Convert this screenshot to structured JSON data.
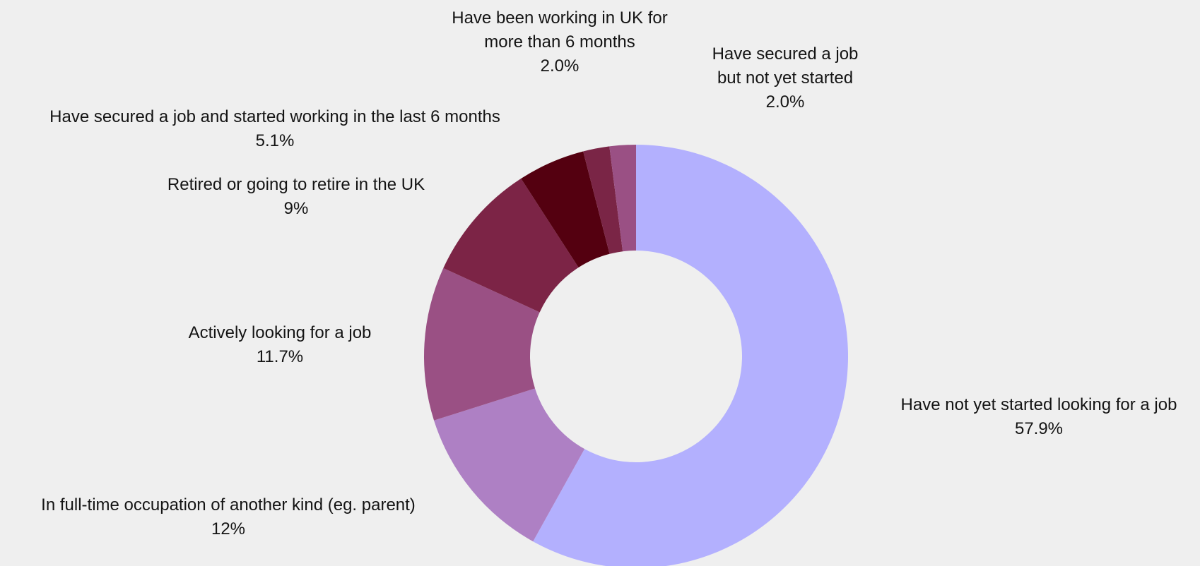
{
  "chart_data": {
    "type": "pie",
    "variant": "donut",
    "title": "",
    "legend": "none",
    "slices": [
      {
        "label_lines": [
          "Have not yet started looking for a job"
        ],
        "value": 57.9,
        "value_label": "57.9%",
        "color": "#b3b0fe"
      },
      {
        "label_lines": [
          "In full-time occupation of another kind (eg. parent)"
        ],
        "value": 12,
        "value_label": "12%",
        "color": "#ae80c4"
      },
      {
        "label_lines": [
          "Actively looking for a job"
        ],
        "value": 11.7,
        "value_label": "11.7%",
        "color": "#9a5084"
      },
      {
        "label_lines": [
          "Retired or going to retire in the UK"
        ],
        "value": 9,
        "value_label": "9%",
        "color": "#7c2446"
      },
      {
        "label_lines": [
          "Have secured a job and started working in the last 6 months"
        ],
        "value": 5.1,
        "value_label": "5.1%",
        "color": "#540010"
      },
      {
        "label_lines": [
          "Have been working in UK for",
          "more than 6 months"
        ],
        "value": 2.0,
        "value_label": "2.0%",
        "color": "#7a2546"
      },
      {
        "label_lines": [
          "Have secured a job",
          "but not yet started"
        ],
        "value": 2.0,
        "value_label": "2.0%",
        "color": "#9a5084"
      }
    ]
  }
}
